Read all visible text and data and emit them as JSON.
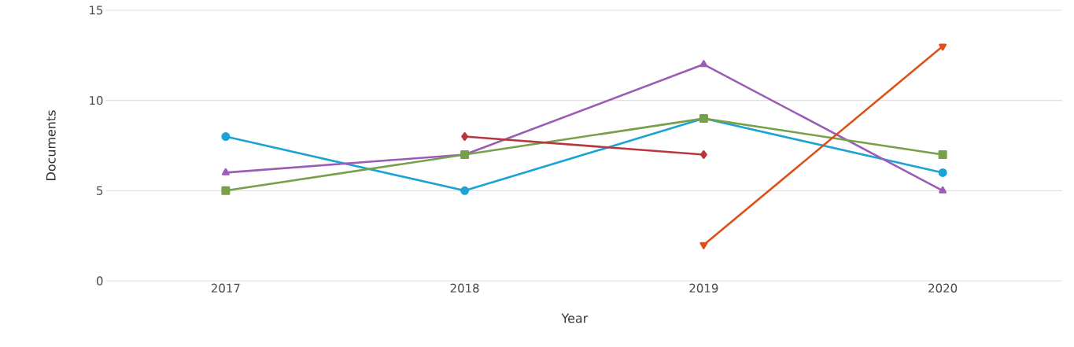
{
  "chart_data": {
    "type": "line",
    "xlabel": "Year",
    "ylabel": "Documents",
    "categories": [
      "2017",
      "2018",
      "2019",
      "2020"
    ],
    "ylim": [
      0,
      15
    ],
    "yticks": [
      0,
      5,
      10,
      15
    ],
    "grid": "y",
    "series": [
      {
        "color": "#1ba3d6",
        "marker": "circle",
        "values": [
          8,
          5,
          9,
          6
        ]
      },
      {
        "color": "#9b5cb8",
        "marker": "triangle",
        "values": [
          6,
          7,
          12,
          5
        ]
      },
      {
        "color": "#76a04a",
        "marker": "square",
        "values": [
          5,
          7,
          9,
          7
        ]
      },
      {
        "color": "#b8373f",
        "marker": "diamond",
        "values": [
          null,
          8,
          7,
          null
        ]
      },
      {
        "color": "#dc5018",
        "marker": "triangle-down",
        "values": [
          null,
          null,
          2,
          13
        ]
      }
    ]
  }
}
